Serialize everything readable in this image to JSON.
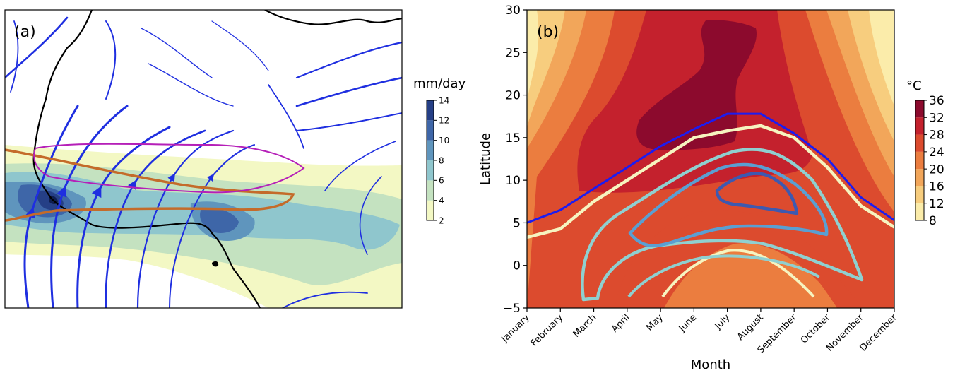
{
  "figure": {
    "panel_a": {
      "label": "(a)",
      "colorbar": {
        "title": "mm/day",
        "levels": [
          2,
          4,
          6,
          8,
          10,
          12,
          14
        ],
        "colors": [
          "#f3f8c4",
          "#c4e2c0",
          "#8fc6cd",
          "#5f95bd",
          "#3e66a8",
          "#253f86",
          "#0f1e4f"
        ]
      },
      "wind_color": "#1f2fe0",
      "contour_colors": {
        "monsoon_band": "#c46b2a",
        "secondary_band": "#b51fb8"
      }
    },
    "panel_b": {
      "label": "(b)",
      "colorbar": {
        "title": "°C",
        "levels": [
          8,
          12,
          16,
          20,
          24,
          28,
          32,
          36
        ],
        "colors": [
          "#fbecaa",
          "#f7cd7e",
          "#f2a65a",
          "#eb7d3f",
          "#dc4b2e",
          "#c4212d",
          "#8c0a2d"
        ]
      }
    }
  },
  "chart_data": [
    {
      "type": "heatmap",
      "title": "",
      "panel_label": "(a)",
      "colorbar_label": "mm/day",
      "colorbar_ticks": [
        2,
        4,
        6,
        8,
        10,
        12,
        14
      ],
      "legend": "colorbar right",
      "grid": false
    },
    {
      "type": "heatmap",
      "title": "",
      "panel_label": "(b)",
      "xlabel": "Month",
      "ylabel": "Latitude",
      "categories": [
        "January",
        "February",
        "March",
        "April",
        "May",
        "June",
        "July",
        "August",
        "September",
        "October",
        "November",
        "December"
      ],
      "yticks": [
        -5,
        0,
        5,
        10,
        15,
        20,
        25,
        30
      ],
      "ylim": [
        -5,
        30
      ],
      "colorbar_label": "°C",
      "colorbar_ticks": [
        8,
        12,
        16,
        20,
        24,
        28,
        32,
        36
      ],
      "legend": "colorbar right",
      "grid": false,
      "series": [
        {
          "color": "#1c1cf0",
          "values": [
            5,
            6.5,
            9,
            11.5,
            14,
            16,
            17.8,
            17.8,
            15.5,
            12.5,
            8,
            5.3
          ]
        },
        {
          "color": "#f6f4c0",
          "values": [
            3.3,
            4.3,
            7.5,
            10,
            12.5,
            15,
            15.8,
            16.4,
            15,
            11.5,
            7,
            4.5
          ]
        }
      ],
      "contour_colors": [
        "#8fd0d0",
        "#5a9fd2",
        "#3d59b0",
        "#f6f4c0"
      ]
    }
  ]
}
